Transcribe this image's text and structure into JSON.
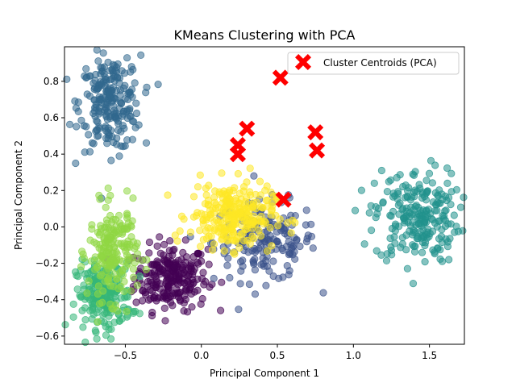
{
  "chart_data": {
    "type": "scatter",
    "title": "KMeans Clustering with PCA",
    "xlabel": "Principal Component 1",
    "ylabel": "Principal Component 2",
    "xlim": [
      -0.9,
      1.73
    ],
    "ylim": [
      -0.645,
      0.99
    ],
    "xticks": [
      -0.5,
      0.0,
      0.5,
      1.0,
      1.5
    ],
    "xtick_labels": [
      "−0.5",
      "0.0",
      "0.5",
      "1.0",
      "1.5"
    ],
    "yticks": [
      -0.6,
      -0.4,
      -0.2,
      0.0,
      0.2,
      0.4,
      0.6,
      0.8
    ],
    "ytick_labels": [
      "−0.6",
      "−0.4",
      "−0.2",
      "0.0",
      "0.2",
      "0.4",
      "0.6",
      "0.8"
    ],
    "grid": false,
    "legend": {
      "position": "top-right",
      "entries": [
        "Cluster Centroids (PCA)"
      ]
    },
    "clusters": [
      {
        "color": "#440154",
        "center": [
          -0.2,
          -0.28
        ],
        "spread": [
          0.12,
          0.09
        ],
        "n": 240
      },
      {
        "color": "#3b528b",
        "center": [
          0.42,
          -0.08
        ],
        "spread": [
          0.17,
          0.11
        ],
        "n": 170
      },
      {
        "color": "#31688e",
        "center": [
          -0.6,
          0.68
        ],
        "spread": [
          0.1,
          0.13
        ],
        "n": 230
      },
      {
        "color": "#21918c",
        "center": [
          1.42,
          0.06
        ],
        "spread": [
          0.14,
          0.13
        ],
        "n": 230
      },
      {
        "color": "#35b779",
        "center": [
          -0.64,
          -0.38
        ],
        "spread": [
          0.09,
          0.09
        ],
        "n": 220
      },
      {
        "color": "#90d743",
        "center": [
          -0.58,
          -0.14
        ],
        "spread": [
          0.08,
          0.13
        ],
        "n": 200
      },
      {
        "color": "#fde725",
        "center": [
          0.2,
          0.06
        ],
        "spread": [
          0.14,
          0.09
        ],
        "n": 260
      }
    ],
    "centroids": {
      "name": "Cluster Centroids (PCA)",
      "color": "#ff0000",
      "points": [
        {
          "x": 0.52,
          "y": 0.82
        },
        {
          "x": 0.3,
          "y": 0.54
        },
        {
          "x": 0.75,
          "y": 0.52
        },
        {
          "x": 0.24,
          "y": 0.45
        },
        {
          "x": 0.76,
          "y": 0.42
        },
        {
          "x": 0.24,
          "y": 0.4
        },
        {
          "x": 0.54,
          "y": 0.15
        }
      ]
    }
  }
}
